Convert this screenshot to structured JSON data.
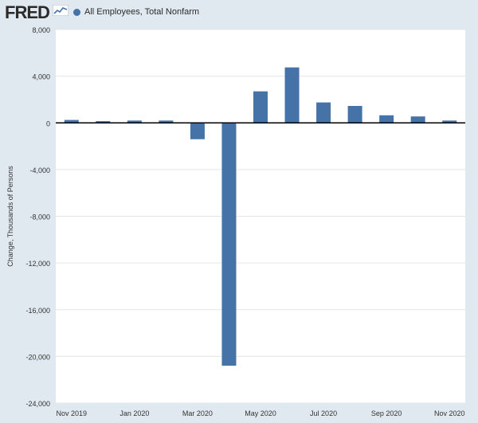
{
  "header": {
    "logo_text": "FRED",
    "logo_icon": "line-chart-icon"
  },
  "colors": {
    "background": "#e1e9f0",
    "plot_background": "#ffffff",
    "bar": "#4572a7",
    "gridline": "#e6e6e6",
    "zero_line": "#000000",
    "text": "#333333"
  },
  "chart_data": {
    "type": "bar",
    "title": "",
    "series": [
      {
        "name": "All Employees, Total Nonfarm",
        "values": [
          250,
          150,
          200,
          200,
          -1400,
          -20800,
          2700,
          4750,
          1750,
          1450,
          650,
          550,
          200
        ]
      }
    ],
    "categories": [
      "Nov 2019",
      "Dec 2019",
      "Jan 2020",
      "Feb 2020",
      "Mar 2020",
      "Apr 2020",
      "May 2020",
      "Jun 2020",
      "Jul 2020",
      "Aug 2020",
      "Sep 2020",
      "Oct 2020",
      "Nov 2020"
    ],
    "x_tick_labels": [
      "Nov 2019",
      "Jan 2020",
      "Mar 2020",
      "May 2020",
      "Jul 2020",
      "Sep 2020",
      "Nov 2020"
    ],
    "x_tick_indices": [
      0,
      2,
      4,
      6,
      8,
      10,
      12
    ],
    "xlabel": "",
    "ylabel": "Change, Thousands of Persons",
    "ylim": [
      -24000,
      8000
    ],
    "yticks": [
      -24000,
      -20000,
      -16000,
      -12000,
      -8000,
      -4000,
      0,
      4000,
      8000
    ],
    "ytick_labels": [
      "-24,000",
      "-20,000",
      "-16,000",
      "-12,000",
      "-8,000",
      "-4,000",
      "0",
      "4,000",
      "8,000"
    ],
    "grid": true,
    "legend_position": "top-left"
  }
}
